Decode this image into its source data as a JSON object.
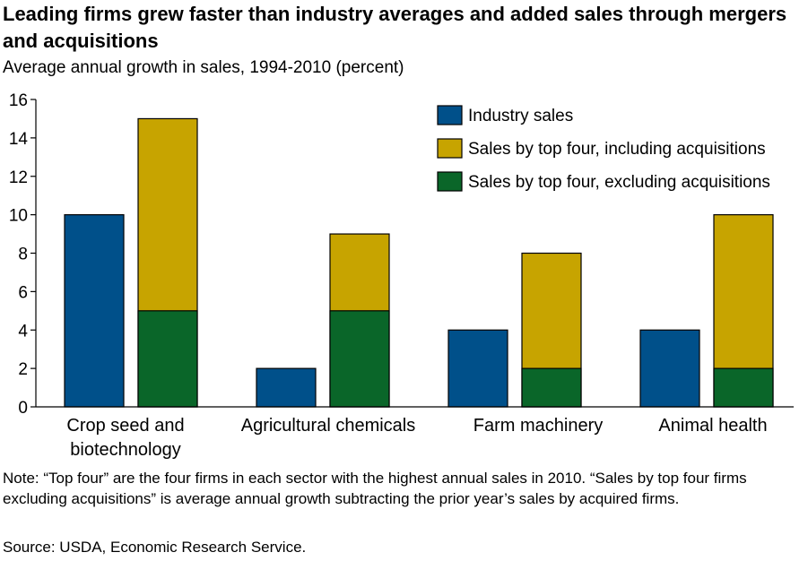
{
  "title": "Leading firms grew faster than industry averages and added sales through mergers and acquisitions",
  "subtitle": "Average annual growth in sales, 1994-2010 (percent)",
  "note": "Note:  “Top four” are the four firms in each sector with the highest annual sales in 2010. “Sales by top four firms excluding acquisitions” is average annual growth subtracting the prior year’s sales by acquired firms.",
  "source": "Source: USDA, Economic Research Service.",
  "colors": {
    "industry": "#00508a",
    "including": "#c7a400",
    "excluding": "#0a6629",
    "axis": "#000000"
  },
  "chart_data": {
    "type": "bar",
    "categories": [
      [
        "Crop seed and",
        "biotechnology"
      ],
      [
        "Agricultural chemicals"
      ],
      [
        "Farm machinery"
      ],
      [
        "Animal health"
      ]
    ],
    "series": [
      {
        "name": "Industry sales",
        "values": [
          10,
          2,
          4,
          4
        ]
      },
      {
        "name": "Sales by top four, including acquisitions",
        "values": [
          15,
          9,
          8,
          10
        ]
      },
      {
        "name": "Sales by top four, excluding acquisitions",
        "values": [
          5,
          5,
          2,
          2
        ]
      }
    ],
    "ylim": [
      0,
      16
    ],
    "yticks": [
      0,
      2,
      4,
      6,
      8,
      10,
      12,
      14,
      16
    ],
    "legend_position": "top-right",
    "grid": false
  }
}
